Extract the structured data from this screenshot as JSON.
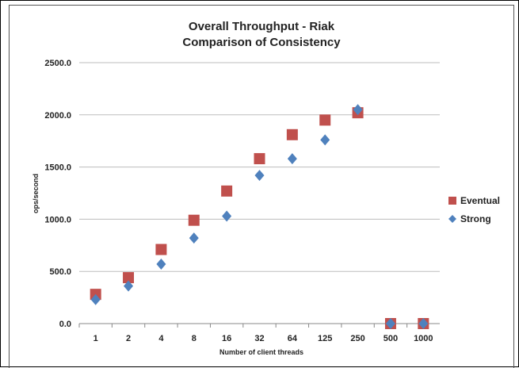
{
  "chart_data": {
    "type": "scatter",
    "title": [
      "Overall Throughput - Riak",
      "Comparison of Consistency"
    ],
    "xlabel": "Number of client threads",
    "ylabel": "ops/second",
    "categories": [
      "1",
      "2",
      "4",
      "8",
      "16",
      "32",
      "64",
      "125",
      "250",
      "500",
      "1000"
    ],
    "ylim": [
      0,
      2500
    ],
    "yticks": [
      "0.0",
      "500.0",
      "1000.0",
      "1500.0",
      "2000.0",
      "2500.0"
    ],
    "grid": true,
    "legend_position": "right",
    "series": [
      {
        "name": "Eventual",
        "marker": "square",
        "color": "#c0504d",
        "values": [
          280,
          440,
          710,
          990,
          1270,
          1580,
          1810,
          1950,
          2020,
          0,
          0
        ]
      },
      {
        "name": "Strong",
        "marker": "diamond",
        "color": "#4f81bd",
        "values": [
          230,
          360,
          570,
          820,
          1030,
          1420,
          1580,
          1760,
          2050,
          0,
          0
        ]
      }
    ]
  }
}
